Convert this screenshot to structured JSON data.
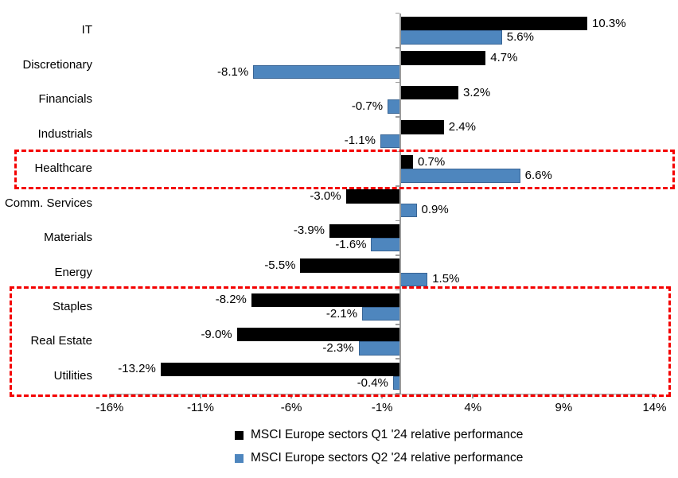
{
  "chart_data": {
    "type": "bar",
    "orientation": "horizontal",
    "title": "",
    "categories": [
      "IT",
      "Discretionary",
      "Financials",
      "Industrials",
      "Healthcare",
      "Comm. Services",
      "Materials",
      "Energy",
      "Staples",
      "Real Estate",
      "Utilities"
    ],
    "series": [
      {
        "name": "MSCI Europe sectors Q1 '24 relative performance",
        "color": "#000000",
        "values": [
          10.3,
          4.7,
          3.2,
          2.4,
          0.7,
          -3.0,
          -3.9,
          -5.5,
          -8.2,
          -9.0,
          -13.2
        ],
        "labels": [
          "10.3%",
          "4.7%",
          "3.2%",
          "2.4%",
          "0.7%",
          "-3.0%",
          "-3.9%",
          "-5.5%",
          "-8.2%",
          "-9.0%",
          "-13.2%"
        ]
      },
      {
        "name": "MSCI Europe sectors Q2 '24 relative performance",
        "color": "#4e86be",
        "values": [
          5.6,
          -8.1,
          -0.7,
          -1.1,
          6.6,
          0.9,
          -1.6,
          1.5,
          -2.1,
          -2.3,
          -0.4
        ],
        "labels": [
          "5.6%",
          "-8.1%",
          "-0.7%",
          "-1.1%",
          "6.6%",
          "0.9%",
          "-1.6%",
          "1.5%",
          "-2.1%",
          "-2.3%",
          "-0.4%"
        ]
      }
    ],
    "x_axis": {
      "min": -16,
      "max": 14,
      "unit": "%",
      "ticks": [
        -16,
        -11,
        -6,
        -1,
        4,
        9,
        14
      ],
      "tick_labels": [
        "-16%",
        "-11%",
        "-6%",
        "-1%",
        "4%",
        "9%",
        "14%"
      ]
    },
    "grid": false,
    "legend_position": "bottom",
    "axis_color": "#9b9b9b",
    "highlight_color": "#f40000",
    "highlights": [
      {
        "id": "healthcare",
        "first_category": "Healthcare",
        "last_category": "Healthcare"
      },
      {
        "id": "staples-realestate-utilities",
        "first_category": "Staples",
        "last_category": "Utilities"
      }
    ]
  }
}
